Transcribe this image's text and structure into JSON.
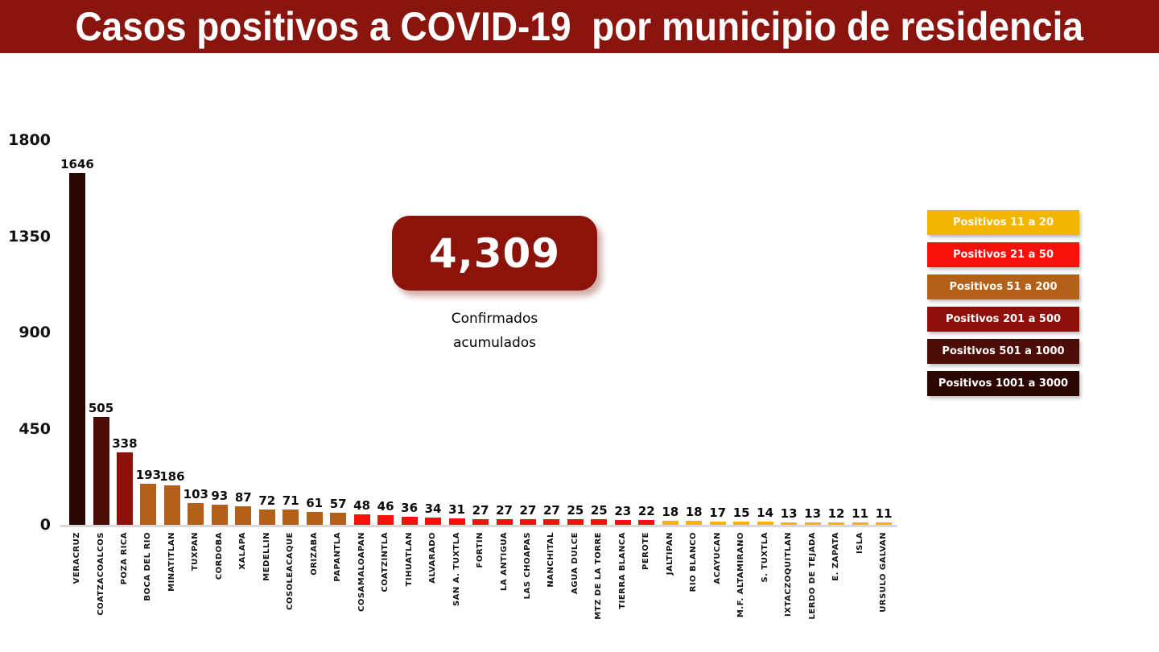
{
  "title": "Casos positivos a COVID-19  por municipio de residencia",
  "summary": {
    "value": "4,309",
    "label_line1": "Confirmados",
    "label_line2": "acumulados"
  },
  "legend": {
    "items": [
      {
        "label": "Positivos 11 a 20",
        "color": "#F2B500"
      },
      {
        "label": "Positivos 21 a 50",
        "color": "#F5100C"
      },
      {
        "label": "Positivos 51 a 200",
        "color": "#B2601A"
      },
      {
        "label": "Positivos 201 a 500",
        "color": "#8E100B"
      },
      {
        "label": "Positivos 501 a 1000",
        "color": "#4A0D07"
      },
      {
        "label": "Positivos 1001 a 3000",
        "color": "#2A0703"
      }
    ]
  },
  "colors": {
    "title_bg": "#8A150F",
    "summary_box_bg": "#8B1309",
    "axis_line": "#D8D8D8"
  },
  "chart_data": {
    "type": "bar",
    "title": "Casos positivos a COVID-19 por municipio de residencia",
    "xlabel": "",
    "ylabel": "",
    "ylim": [
      0,
      1800
    ],
    "yticks": [
      1800,
      1350,
      900,
      450,
      0
    ],
    "grid": false,
    "legend_position": "right",
    "categories": [
      "VERACRUZ",
      "COATZACOALCOS",
      "POZA RICA",
      "BOCA DEL RIO",
      "MINATITLAN",
      "TUXPAN",
      "CORDOBA",
      "XALAPA",
      "MEDELLIN",
      "COSOLEACAQUE",
      "ORIZABA",
      "PAPANTLA",
      "COSAMALOAPAN",
      "COATZINTLA",
      "TIHUATLAN",
      "ALVARADO",
      "SAN A. TUXTLA",
      "FORTIN",
      "LA ANTIGUA",
      "LAS CHOAPAS",
      "NANCHITAL",
      "AGUA DULCE",
      "MTZ DE LA TORRE",
      "TIERRA BLANCA",
      "PEROTE",
      "JALTIPAN",
      "RIO BLANCO",
      "ACAYUCAN",
      "M.F. ALTAMIRANO",
      "S. TUXTLA",
      "IXTACZOQUITLAN",
      "LERDO DE TEJADA",
      "E. ZAPATA",
      "ISLA",
      "URSULO GALVAN"
    ],
    "values": [
      1646,
      505,
      338,
      193,
      186,
      103,
      93,
      87,
      72,
      71,
      61,
      57,
      48,
      46,
      36,
      34,
      31,
      27,
      27,
      27,
      27,
      25,
      25,
      23,
      22,
      18,
      18,
      17,
      15,
      14,
      13,
      13,
      12,
      11,
      11
    ],
    "bar_colors": [
      "#2A0703",
      "#4A0D07",
      "#8E100B",
      "#B2601A",
      "#B2601A",
      "#B2601A",
      "#B2601A",
      "#B2601A",
      "#B2601A",
      "#B2601A",
      "#B2601A",
      "#B2601A",
      "#F5100C",
      "#F5100C",
      "#F5100C",
      "#F5100C",
      "#F5100C",
      "#F5100C",
      "#F5100C",
      "#F5100C",
      "#F5100C",
      "#F5100C",
      "#F5100C",
      "#F5100C",
      "#F5100C",
      "#F2B500",
      "#F2B500",
      "#F2B500",
      "#F2B500",
      "#F2B500",
      "#F2B500",
      "#F2B500",
      "#F2B500",
      "#F2B500",
      "#F2B500"
    ]
  }
}
